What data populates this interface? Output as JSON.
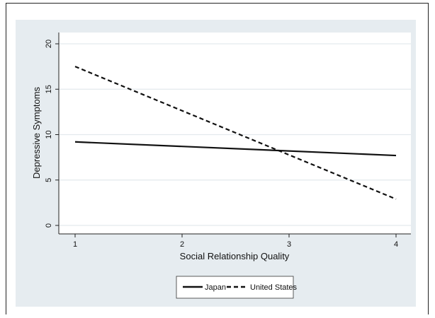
{
  "chart_data": {
    "type": "line",
    "title": "",
    "xlabel": "Social Relationship Quality",
    "ylabel": "Depressive Symptoms",
    "xlim": [
      1,
      4
    ],
    "ylim": [
      0,
      20
    ],
    "xticks": [
      1,
      2,
      3,
      4
    ],
    "yticks": [
      0,
      5,
      10,
      15,
      20
    ],
    "grid": true,
    "legend_position": "bottom",
    "series": [
      {
        "name": "Japan",
        "line_style": "solid",
        "color": "#111111",
        "x": [
          1,
          4
        ],
        "values": [
          9.2,
          7.7
        ]
      },
      {
        "name": "United States",
        "line_style": "dashed",
        "color": "#111111",
        "x": [
          1,
          4
        ],
        "values": [
          17.5,
          2.9
        ]
      }
    ]
  }
}
